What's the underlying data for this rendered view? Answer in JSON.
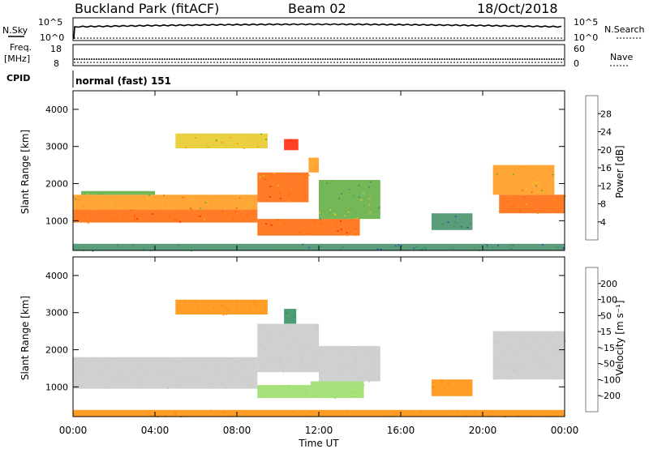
{
  "header": {
    "station": "Buckland Park (fitACF)",
    "beam": "Beam 02",
    "date": "18/Oct/2018"
  },
  "top_panels": {
    "nsky_label": "N.Sky",
    "nsky_ticks": [
      "10^5",
      "10^0"
    ],
    "nsearch_label": "N.Search",
    "freq_label_1": "Freq.",
    "freq_label_2": "[MHz]",
    "freq_ticks": [
      "18",
      "8"
    ],
    "nave_label": "Nave",
    "nave_ticks": [
      "60",
      "0"
    ],
    "cpid_label": "CPID",
    "cpid_value": "normal (fast) 151"
  },
  "colors": {
    "power_scale": [
      "#0000ff",
      "#2850b4",
      "#3c8c64",
      "#5aaa3c",
      "#e6c81e",
      "#ff9614",
      "#ff6400",
      "#ff1e00",
      "#dc0000"
    ],
    "velocity_scale": [
      "#ff0000",
      "#ff5000",
      "#ff8c00",
      "#ffb400",
      "#c8c8c8",
      "#c8c8c8",
      "#96dc64",
      "#3cb428",
      "#2d8c5a",
      "#1e46b4",
      "#0a1e8c"
    ]
  },
  "chart_data": [
    {
      "type": "heatmap",
      "name": "Power",
      "ylabel": "Slant Range [km]",
      "yticks": [
        1000,
        2000,
        3000,
        4000
      ],
      "ylim": [
        200,
        4500
      ],
      "colorbar_label": "Power [dB]",
      "colorbar_ticks": [
        "4",
        "8",
        "12",
        "16",
        "20",
        "24",
        "28"
      ],
      "colorbar_range": [
        0,
        32
      ],
      "regions": [
        {
          "t0": 0.0,
          "t1": 9.0,
          "r0": 950,
          "r1": 1300,
          "v": 24
        },
        {
          "t0": 0.0,
          "t1": 9.0,
          "r0": 1300,
          "r1": 1700,
          "v": 20
        },
        {
          "t0": 0.4,
          "t1": 4.0,
          "r0": 1700,
          "r1": 1800,
          "v": 14
        },
        {
          "t0": 9.0,
          "t1": 11.5,
          "r0": 1500,
          "r1": 2300,
          "v": 24
        },
        {
          "t0": 11.5,
          "t1": 12.0,
          "r0": 2300,
          "r1": 2700,
          "v": 20
        },
        {
          "t0": 5.0,
          "t1": 9.5,
          "r0": 2950,
          "r1": 3350,
          "v": 18
        },
        {
          "t0": 10.3,
          "t1": 11.0,
          "r0": 2900,
          "r1": 3200,
          "v": 28
        },
        {
          "t0": 9.0,
          "t1": 14.0,
          "r0": 600,
          "r1": 1050,
          "v": 26
        },
        {
          "t0": 12.0,
          "t1": 15.0,
          "r0": 1050,
          "r1": 2100,
          "v": 14
        },
        {
          "t0": 17.5,
          "t1": 19.5,
          "r0": 750,
          "r1": 1200,
          "v": 10
        },
        {
          "t0": 20.8,
          "t1": 24.0,
          "r0": 1200,
          "r1": 1700,
          "v": 24
        },
        {
          "t0": 20.5,
          "t1": 23.5,
          "r0": 1700,
          "r1": 2500,
          "v": 20
        },
        {
          "t0": 0.0,
          "t1": 24.0,
          "r0": 200,
          "r1": 380,
          "v": 10
        }
      ]
    },
    {
      "type": "heatmap",
      "name": "Velocity",
      "ylabel": "Slant Range [km]",
      "yticks": [
        1000,
        2000,
        3000,
        4000
      ],
      "ylim": [
        200,
        4500
      ],
      "colorbar_label": "Velocity [m s⁻¹]",
      "colorbar_ticks": [
        "200",
        "100",
        "50",
        "15",
        "-15",
        "-50",
        "-100",
        "-200"
      ],
      "colorbar_range": [
        -250,
        250
      ],
      "regions": [
        {
          "t0": 0.0,
          "t1": 9.0,
          "r0": 950,
          "r1": 1800,
          "v": 0
        },
        {
          "t0": 9.0,
          "t1": 12.0,
          "r0": 1400,
          "r1": 2700,
          "v": 0
        },
        {
          "t0": 5.0,
          "t1": 9.5,
          "r0": 2950,
          "r1": 3350,
          "v": -60
        },
        {
          "t0": 10.3,
          "t1": 10.9,
          "r0": 2700,
          "r1": 3100,
          "v": 150
        },
        {
          "t0": 9.0,
          "t1": 11.6,
          "r0": 700,
          "r1": 1050,
          "v": 30
        },
        {
          "t0": 11.6,
          "t1": 14.2,
          "r0": 700,
          "r1": 1150,
          "v": 40
        },
        {
          "t0": 12.0,
          "t1": 15.0,
          "r0": 1150,
          "r1": 2100,
          "v": 0
        },
        {
          "t0": 17.5,
          "t1": 19.5,
          "r0": 750,
          "r1": 1200,
          "v": -70
        },
        {
          "t0": 20.5,
          "t1": 24.0,
          "r0": 1200,
          "r1": 2500,
          "v": 0
        },
        {
          "t0": 0.0,
          "t1": 24.0,
          "r0": 200,
          "r1": 380,
          "v": -70
        }
      ]
    }
  ],
  "x_axis": {
    "label": "Time UT",
    "ticks": [
      "00:00",
      "04:00",
      "08:00",
      "12:00",
      "16:00",
      "20:00",
      "00:00"
    ],
    "range_hours": [
      0,
      24
    ]
  }
}
